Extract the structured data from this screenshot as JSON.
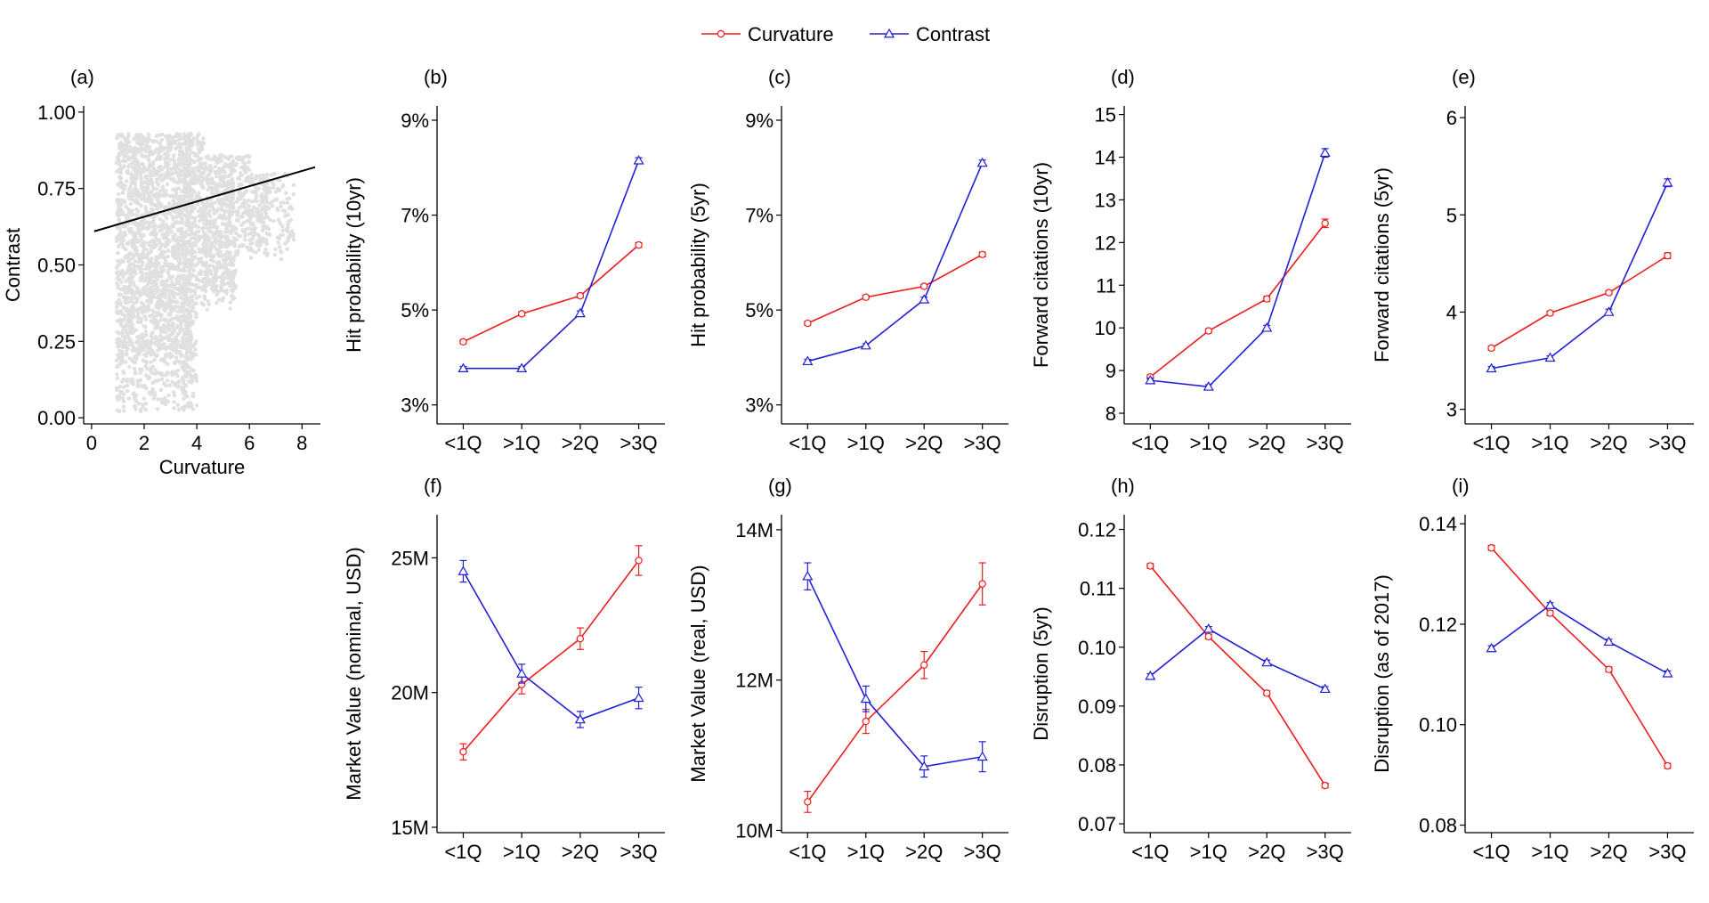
{
  "legend": {
    "items": [
      {
        "label": "Curvature",
        "color": "#ee1c1c",
        "marker": "circle"
      },
      {
        "label": "Contrast",
        "color": "#1f1fd6",
        "marker": "triangle"
      }
    ]
  },
  "colors": {
    "curvature": "#ee1c1c",
    "contrast": "#1f1fd6",
    "scatter": "#c8c8c8",
    "fit": "#000000"
  },
  "chart_data": [
    {
      "id": "a",
      "panel_label": "(a)",
      "type": "scatter",
      "xlabel": "Curvature",
      "ylabel": "Contrast",
      "xlim": [
        -0.3,
        8.7
      ],
      "ylim": [
        -0.02,
        1.02
      ],
      "xticks": [
        0,
        2,
        4,
        6,
        8
      ],
      "xtick_labels": [
        "0",
        "2",
        "4",
        "6",
        "8"
      ],
      "yticks": [
        0,
        0.25,
        0.5,
        0.75,
        1.0
      ],
      "ytick_labels": [
        "0.00",
        "0.25",
        "0.50",
        "0.75",
        "1.00"
      ],
      "fit_line": {
        "x": [
          0.1,
          8.5
        ],
        "y": [
          0.61,
          0.82
        ]
      },
      "point_cloud": "dense grey cloud of patents; Curvature roughly 0.9–7.5, Contrast roughly 0.0–1.0, densest for Curvature 1–4"
    },
    {
      "id": "b",
      "panel_label": "(b)",
      "type": "line",
      "ylabel": "Hit probability (10yr)",
      "categories": [
        "<1Q",
        ">1Q",
        ">2Q",
        ">3Q"
      ],
      "ylim": [
        2.6,
        9.3
      ],
      "yticks": [
        3,
        5,
        7,
        9
      ],
      "ytick_labels": [
        "3%",
        "5%",
        "7%",
        "9%"
      ],
      "series": [
        {
          "name": "Curvature",
          "values": [
            4.33,
            4.92,
            5.3,
            6.37
          ],
          "errors": [
            0.04,
            0.04,
            0.04,
            0.05
          ]
        },
        {
          "name": "Contrast",
          "values": [
            3.77,
            3.77,
            4.93,
            8.15
          ],
          "errors": [
            0.04,
            0.04,
            0.05,
            0.06
          ]
        }
      ]
    },
    {
      "id": "c",
      "panel_label": "(c)",
      "type": "line",
      "ylabel": "Hit probability (5yr)",
      "categories": [
        "<1Q",
        ">1Q",
        ">2Q",
        ">3Q"
      ],
      "ylim": [
        2.6,
        9.3
      ],
      "yticks": [
        3,
        5,
        7,
        9
      ],
      "ytick_labels": [
        "3%",
        "5%",
        "7%",
        "9%"
      ],
      "series": [
        {
          "name": "Curvature",
          "values": [
            4.72,
            5.27,
            5.5,
            6.17
          ],
          "errors": [
            0.04,
            0.04,
            0.04,
            0.05
          ]
        },
        {
          "name": "Contrast",
          "values": [
            3.92,
            4.25,
            5.22,
            8.1
          ],
          "errors": [
            0.04,
            0.04,
            0.05,
            0.06
          ]
        }
      ]
    },
    {
      "id": "d",
      "panel_label": "(d)",
      "type": "line",
      "ylabel": "Forward citations (10yr)",
      "categories": [
        "<1Q",
        ">1Q",
        ">2Q",
        ">3Q"
      ],
      "ylim": [
        7.75,
        15.2
      ],
      "yticks": [
        8,
        9,
        10,
        11,
        12,
        13,
        14,
        15
      ],
      "ytick_labels": [
        "8",
        "9",
        "10",
        "11",
        "12",
        "13",
        "14",
        "15"
      ],
      "series": [
        {
          "name": "Curvature",
          "values": [
            8.85,
            9.93,
            10.68,
            12.45
          ],
          "errors": [
            0.05,
            0.05,
            0.06,
            0.1
          ]
        },
        {
          "name": "Contrast",
          "values": [
            8.77,
            8.62,
            10.0,
            14.1
          ],
          "errors": [
            0.05,
            0.05,
            0.06,
            0.1
          ]
        }
      ]
    },
    {
      "id": "e",
      "panel_label": "(e)",
      "type": "line",
      "ylabel": "Forward citations (5yr)",
      "categories": [
        "<1Q",
        ">1Q",
        ">2Q",
        ">3Q"
      ],
      "ylim": [
        2.85,
        6.12
      ],
      "yticks": [
        3,
        4,
        5,
        6
      ],
      "ytick_labels": [
        "3",
        "4",
        "5",
        "6"
      ],
      "series": [
        {
          "name": "Curvature",
          "values": [
            3.63,
            3.99,
            4.2,
            4.58
          ],
          "errors": [
            0.02,
            0.02,
            0.02,
            0.03
          ]
        },
        {
          "name": "Contrast",
          "values": [
            3.42,
            3.53,
            4.0,
            5.33
          ],
          "errors": [
            0.02,
            0.02,
            0.03,
            0.04
          ]
        }
      ]
    },
    {
      "id": "f",
      "panel_label": "(f)",
      "type": "line",
      "ylabel": "Market Value (nominal, USD)",
      "categories": [
        "<1Q",
        ">1Q",
        ">2Q",
        ">3Q"
      ],
      "ylim": [
        14.8,
        26.6
      ],
      "yticks": [
        15,
        20,
        25
      ],
      "ytick_labels": [
        "15M",
        "20M",
        "25M"
      ],
      "series": [
        {
          "name": "Curvature",
          "values": [
            17.8,
            20.3,
            22.0,
            24.9
          ],
          "errors": [
            0.3,
            0.35,
            0.4,
            0.55
          ]
        },
        {
          "name": "Contrast",
          "values": [
            24.5,
            20.7,
            19.0,
            19.8
          ],
          "errors": [
            0.4,
            0.35,
            0.3,
            0.4
          ]
        }
      ]
    },
    {
      "id": "g",
      "panel_label": "(g)",
      "type": "line",
      "ylabel": "Market Value (real, USD)",
      "categories": [
        "<1Q",
        ">1Q",
        ">2Q",
        ">3Q"
      ],
      "ylim": [
        9.97,
        14.2
      ],
      "yticks": [
        10,
        12,
        14
      ],
      "ytick_labels": [
        "10M",
        "12M",
        "14M"
      ],
      "series": [
        {
          "name": "Curvature",
          "values": [
            10.38,
            11.45,
            12.2,
            13.28
          ],
          "errors": [
            0.14,
            0.16,
            0.18,
            0.28
          ]
        },
        {
          "name": "Contrast",
          "values": [
            13.38,
            11.75,
            10.85,
            10.98
          ],
          "errors": [
            0.18,
            0.17,
            0.14,
            0.2
          ]
        }
      ]
    },
    {
      "id": "h",
      "panel_label": "(h)",
      "type": "line",
      "ylabel": "Disruption (5yr)",
      "categories": [
        "<1Q",
        ">1Q",
        ">2Q",
        ">3Q"
      ],
      "ylim": [
        0.0685,
        0.1225
      ],
      "yticks": [
        0.07,
        0.08,
        0.09,
        0.1,
        0.11,
        0.12
      ],
      "ytick_labels": [
        "0.07",
        "0.08",
        "0.09",
        "0.10",
        "0.11",
        "0.12"
      ],
      "series": [
        {
          "name": "Curvature",
          "values": [
            0.1138,
            0.1018,
            0.0922,
            0.0765
          ],
          "errors": [
            0.0004,
            0.0004,
            0.0004,
            0.0004
          ]
        },
        {
          "name": "Contrast",
          "values": [
            0.0951,
            0.1031,
            0.0974,
            0.0929
          ],
          "errors": [
            0.0004,
            0.0004,
            0.0004,
            0.0004
          ]
        }
      ]
    },
    {
      "id": "i",
      "panel_label": "(i)",
      "type": "line",
      "ylabel": "Disruption (as of 2017)",
      "categories": [
        "<1Q",
        ">1Q",
        ">2Q",
        ">3Q"
      ],
      "ylim": [
        0.0785,
        0.1418
      ],
      "yticks": [
        0.08,
        0.1,
        0.12,
        0.14
      ],
      "ytick_labels": [
        "0.08",
        "0.10",
        "0.12",
        "0.14"
      ],
      "series": [
        {
          "name": "Curvature",
          "values": [
            0.1352,
            0.1222,
            0.111,
            0.0918
          ],
          "errors": [
            0.0005,
            0.0005,
            0.0005,
            0.0005
          ]
        },
        {
          "name": "Contrast",
          "values": [
            0.1152,
            0.1238,
            0.1165,
            0.1102
          ],
          "errors": [
            0.0005,
            0.0005,
            0.0005,
            0.0005
          ]
        }
      ]
    }
  ]
}
